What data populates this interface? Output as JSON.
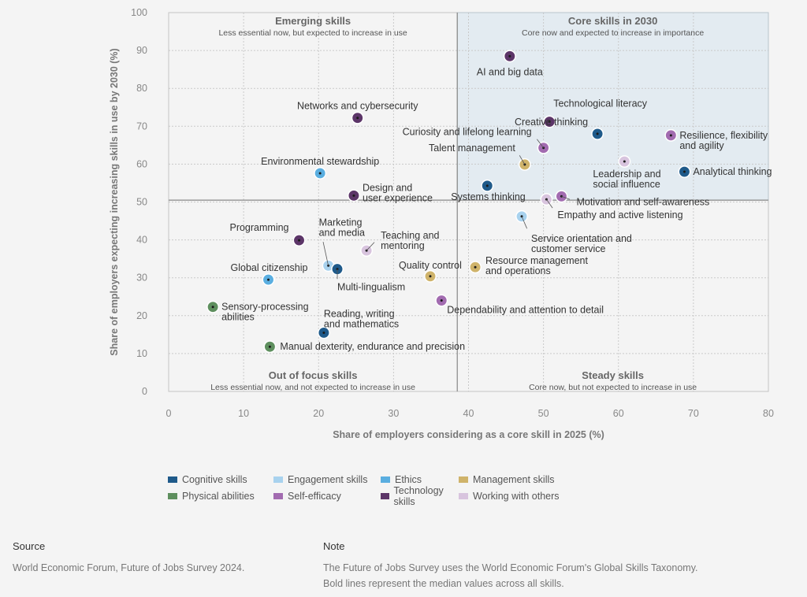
{
  "chart_data": {
    "type": "scatter",
    "xlabel": "Share of employers considering as a core skill in 2025 (%)",
    "ylabel": "Share of employers expecting increasing skills in use by 2030 (%)",
    "xlim": [
      0,
      80
    ],
    "ylim": [
      0,
      100
    ],
    "xticks": [
      "0",
      "10",
      "20",
      "30",
      "40",
      "50",
      "60",
      "70",
      "80"
    ],
    "yticks": [
      "0",
      "10",
      "20",
      "30",
      "40",
      "50",
      "60",
      "70",
      "80",
      "90",
      "100"
    ],
    "grid": true,
    "median": {
      "x": 38.5,
      "y": 50.5
    },
    "quadrants": [
      {
        "title": "Emerging skills",
        "subtitle": "Less essential now, but expected to increase in use",
        "position": "top-left"
      },
      {
        "title": "Core skills in 2030",
        "subtitle": "Core now and expected to increase in importance",
        "position": "top-right"
      },
      {
        "title": "Out of focus skills",
        "subtitle": "Less essential now, and not expected to increase in use",
        "position": "bottom-left"
      },
      {
        "title": "Steady skills",
        "subtitle": "Core now, but not expected to increase in use",
        "position": "bottom-right"
      }
    ],
    "categories": [
      {
        "name": "Cognitive skills",
        "color": "#1f5a8a"
      },
      {
        "name": "Engagement skills",
        "color": "#a8d2ee"
      },
      {
        "name": "Ethics",
        "color": "#5aaee0"
      },
      {
        "name": "Management skills",
        "color": "#cfb36a"
      },
      {
        "name": "Physical abilities",
        "color": "#5e8f5e"
      },
      {
        "name": "Self-efficacy",
        "color": "#a26bb0"
      },
      {
        "name": "Technology skills",
        "color": "#5c3568"
      },
      {
        "name": "Working with others",
        "color": "#d8c4de"
      }
    ],
    "points": [
      {
        "label": "AI and big data",
        "category": "Technology skills",
        "x": 45.5,
        "y": 88.5
      },
      {
        "label": "Technological literacy",
        "category": "Technology skills",
        "x": 50.8,
        "y": 71.2
      },
      {
        "label": "Creative thinking",
        "category": "Cognitive skills",
        "x": 57.2,
        "y": 68.0
      },
      {
        "label": "Resilience, flexibility and agility",
        "category": "Self-efficacy",
        "x": 67.0,
        "y": 67.6
      },
      {
        "label": "Curiosity and lifelong learning",
        "category": "Self-efficacy",
        "x": 50.0,
        "y": 64.3
      },
      {
        "label": "Talent management",
        "category": "Management skills",
        "x": 47.5,
        "y": 59.9
      },
      {
        "label": "Leadership and social influence",
        "category": "Working with others",
        "x": 60.8,
        "y": 60.7
      },
      {
        "label": "Analytical thinking",
        "category": "Cognitive skills",
        "x": 68.8,
        "y": 58.0
      },
      {
        "label": "Systems thinking",
        "category": "Cognitive skills",
        "x": 42.5,
        "y": 54.3
      },
      {
        "label": "Motivation and self-awareness",
        "category": "Self-efficacy",
        "x": 52.4,
        "y": 51.5
      },
      {
        "label": "Empathy and active listening",
        "category": "Working with others",
        "x": 50.4,
        "y": 50.7
      },
      {
        "label": "Service orientation and customer service",
        "category": "Engagement skills",
        "x": 47.1,
        "y": 46.2
      },
      {
        "label": "Networks and cybersecurity",
        "category": "Technology skills",
        "x": 25.2,
        "y": 72.2
      },
      {
        "label": "Environmental stewardship",
        "category": "Ethics",
        "x": 20.2,
        "y": 57.6
      },
      {
        "label": "Design and user experience",
        "category": "Technology skills",
        "x": 24.7,
        "y": 51.7
      },
      {
        "label": "Programming",
        "category": "Technology skills",
        "x": 17.4,
        "y": 39.9
      },
      {
        "label": "Marketing and media",
        "category": "Engagement skills",
        "x": 21.3,
        "y": 33.2
      },
      {
        "label": "Teaching and mentoring",
        "category": "Working with others",
        "x": 26.4,
        "y": 37.2
      },
      {
        "label": "Multi-lingualism",
        "category": "Cognitive skills",
        "x": 22.5,
        "y": 32.3
      },
      {
        "label": "Global citizenship",
        "category": "Ethics",
        "x": 13.3,
        "y": 29.5
      },
      {
        "label": "Quality control",
        "category": "Management skills",
        "x": 34.9,
        "y": 30.4
      },
      {
        "label": "Resource management and operations",
        "category": "Management skills",
        "x": 40.9,
        "y": 32.8
      },
      {
        "label": "Sensory-processing abilities",
        "category": "Physical abilities",
        "x": 5.9,
        "y": 22.3
      },
      {
        "label": "Dependability and attention to detail",
        "category": "Self-efficacy",
        "x": 36.4,
        "y": 24.0
      },
      {
        "label": "Reading, writing and mathematics",
        "category": "Cognitive skills",
        "x": 20.7,
        "y": 15.5
      },
      {
        "label": "Manual dexterity, endurance and precision",
        "category": "Physical abilities",
        "x": 13.5,
        "y": 11.8
      }
    ]
  },
  "footer": {
    "source_title": "Source",
    "source_text": "World Economic Forum, Future of Jobs Survey 2024.",
    "note_title": "Note",
    "note_lines": [
      "The Future of Jobs Survey uses the World Economic Forum's Global Skills Taxonomy.",
      "Bold lines represent the median values across all skills."
    ]
  }
}
